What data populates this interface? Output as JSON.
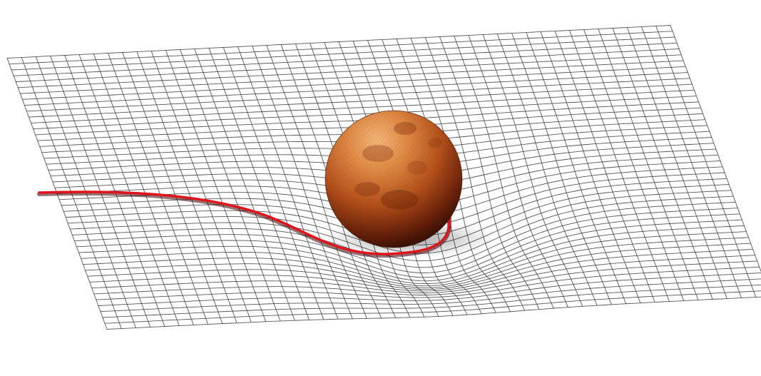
{
  "colors": {
    "background": "#ffffff",
    "grid_line": "#3a3a3a",
    "trajectory": "#d9141c",
    "trajectory_shadow": "#5a0000",
    "planet_light": "#e9a060",
    "planet_mid": "#b5501a",
    "planet_dark": "#2a0a02"
  },
  "objects": {
    "mesh": "warped-spacetime-grid",
    "body": "planet-sphere",
    "path": "curved-trajectory"
  }
}
